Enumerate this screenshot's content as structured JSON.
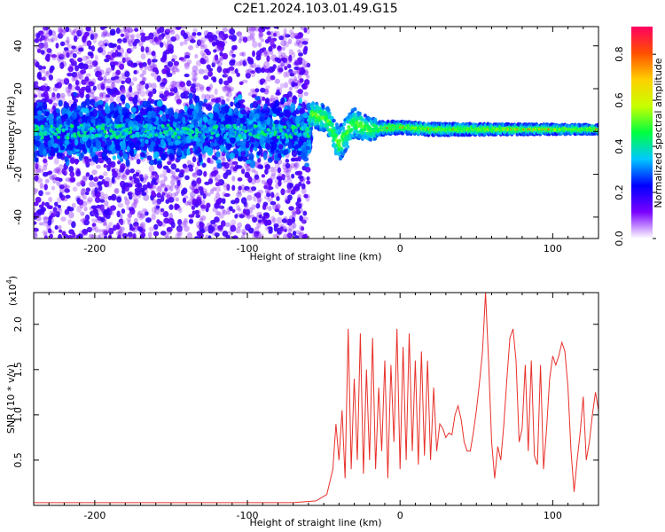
{
  "figure_title": "C2E1.2024.103.01.49.G15",
  "chart_data": [
    {
      "type": "heatmap",
      "xlabel": "Height of straight line (km)",
      "ylabel": "Frequency (Hz)",
      "xlim": [
        -240,
        130
      ],
      "ylim": [
        -50,
        49
      ],
      "x_ticks": [
        -200,
        -100,
        0,
        100
      ],
      "x_tick_labels": [
        "-200",
        "-100",
        "0",
        "100"
      ],
      "y_ticks": [
        -40,
        -20,
        0,
        20,
        40
      ],
      "y_tick_labels": [
        "-40",
        "-20",
        "0",
        "20",
        "40"
      ],
      "colorbar": {
        "label": "Normalized spectral amplitude",
        "range": [
          0,
          0.92
        ],
        "ticks": [
          0.0,
          0.2,
          0.4,
          0.6,
          0.8
        ],
        "tick_labels": [
          "0.0",
          "0.2",
          "0.4",
          "0.6",
          "0.8"
        ],
        "colormap": [
          "#ffffff",
          "#7a00ff",
          "#0000ff",
          "#00c8ff",
          "#00ff40",
          "#c8ff00",
          "#ffd000",
          "#ff5000",
          "#ff0060"
        ]
      },
      "signal_band": [
        {
          "x": -240,
          "center": 0,
          "half_width": 8
        },
        {
          "x": -60,
          "center": 0,
          "half_width": 8
        },
        {
          "x": -58,
          "center": 8,
          "half_width": 6
        },
        {
          "x": -48,
          "center": 6,
          "half_width": 6
        },
        {
          "x": -40,
          "center": -6,
          "half_width": 8
        },
        {
          "x": -30,
          "center": 4,
          "half_width": 7
        },
        {
          "x": -20,
          "center": 1,
          "half_width": 5
        },
        {
          "x": 0,
          "center": 2,
          "half_width": 4
        },
        {
          "x": 20,
          "center": 1,
          "half_width": 4
        },
        {
          "x": 130,
          "center": 1,
          "half_width": 3
        }
      ]
    },
    {
      "type": "line",
      "xlabel": "Height of straight line (km)",
      "ylabel": "SNR (10 * v/v)",
      "y_scale_label": "(x10",
      "y_scale_exponent": "4",
      "y_scale_suffix": ")",
      "xlim": [
        -240,
        130
      ],
      "ylim": [
        0,
        2.35
      ],
      "x_ticks": [
        -200,
        -100,
        0,
        100
      ],
      "x_tick_labels": [
        "-200",
        "-100",
        "0",
        "100"
      ],
      "y_ticks": [
        0.5,
        1.0,
        1.5,
        2.0
      ],
      "y_tick_labels": [
        "0.5",
        "1.0",
        "1.5",
        "2.0"
      ],
      "line_color": "#e8302a",
      "series": [
        {
          "x": [
            -240,
            -200,
            -150,
            -100,
            -70,
            -55,
            -48,
            -44,
            -42,
            -40,
            -38,
            -36,
            -34,
            -32,
            -30,
            -28,
            -26,
            -24,
            -22,
            -20,
            -18,
            -16,
            -14,
            -12,
            -10,
            -8,
            -6,
            -4,
            -2,
            0,
            2,
            4,
            6,
            8,
            10,
            12,
            14,
            16,
            18,
            20,
            22,
            24,
            26,
            28,
            30,
            32,
            34,
            36,
            38,
            40,
            42,
            44,
            46,
            48,
            50,
            52,
            54,
            56,
            58,
            60,
            62,
            64,
            66,
            68,
            70,
            72,
            74,
            76,
            78,
            80,
            82,
            84,
            86,
            88,
            90,
            92,
            94,
            96,
            98,
            100,
            102,
            104,
            106,
            108,
            110,
            112,
            114,
            116,
            118,
            120,
            122,
            124,
            126,
            128,
            130
          ],
          "y": [
            0.03,
            0.03,
            0.03,
            0.03,
            0.03,
            0.05,
            0.12,
            0.4,
            0.9,
            0.5,
            1.05,
            0.3,
            1.95,
            0.4,
            1.4,
            0.5,
            1.9,
            0.35,
            1.5,
            0.5,
            1.85,
            0.4,
            1.3,
            0.6,
            1.6,
            0.3,
            1.55,
            0.7,
            1.95,
            0.4,
            1.75,
            0.5,
            1.9,
            0.6,
            1.6,
            0.45,
            1.7,
            0.55,
            1.6,
            0.5,
            1.3,
            0.6,
            0.9,
            0.85,
            0.75,
            0.8,
            0.78,
            1.0,
            1.1,
            0.95,
            0.7,
            0.6,
            0.6,
            0.8,
            1.05,
            1.35,
            1.7,
            2.35,
            1.6,
            0.7,
            0.3,
            0.65,
            0.5,
            0.9,
            1.4,
            1.85,
            1.95,
            1.6,
            0.7,
            0.85,
            1.55,
            0.6,
            1.6,
            0.55,
            0.45,
            1.55,
            0.4,
            0.85,
            1.4,
            1.65,
            1.55,
            1.65,
            1.8,
            1.7,
            1.3,
            0.6,
            0.15,
            0.5,
            0.8,
            1.2,
            0.5,
            0.7,
            1.0,
            1.25,
            1.05
          ]
        }
      ]
    }
  ]
}
